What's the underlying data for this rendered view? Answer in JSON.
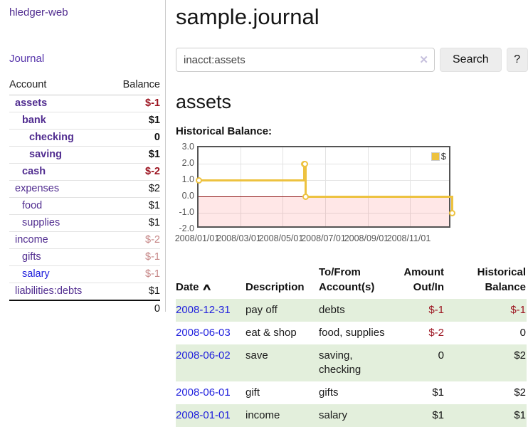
{
  "app": {
    "brand": "hledger-web"
  },
  "sidebar": {
    "nav_journal": "Journal",
    "table": {
      "account_header": "Account",
      "balance_header": "Balance",
      "rows": [
        {
          "account": "assets",
          "balance": "$-1",
          "indent": 1,
          "bold": true,
          "tone": "neg"
        },
        {
          "account": "bank",
          "balance": "$1",
          "indent": 2,
          "bold": true,
          "tone": ""
        },
        {
          "account": "checking",
          "balance": "0",
          "indent": 3,
          "bold": true,
          "tone": ""
        },
        {
          "account": "saving",
          "balance": "$1",
          "indent": 3,
          "bold": true,
          "tone": ""
        },
        {
          "account": "cash",
          "balance": "$-2",
          "indent": 2,
          "bold": true,
          "tone": "neg"
        },
        {
          "account": "expenses",
          "balance": "$2",
          "indent": 1,
          "bold": false,
          "tone": ""
        },
        {
          "account": "food",
          "balance": "$1",
          "indent": 2,
          "bold": false,
          "tone": ""
        },
        {
          "account": "supplies",
          "balance": "$1",
          "indent": 2,
          "bold": false,
          "tone": ""
        },
        {
          "account": "income",
          "balance": "$-2",
          "indent": 1,
          "bold": false,
          "tone": "pale"
        },
        {
          "account": "gifts",
          "balance": "$-1",
          "indent": 2,
          "bold": false,
          "tone": "pale"
        },
        {
          "account": "salary",
          "balance": "$-1",
          "indent": 2,
          "bold": false,
          "tone": "pale",
          "link": "blue"
        },
        {
          "account": "liabilities:debts",
          "balance": "$1",
          "indent": 1,
          "bold": false,
          "tone": ""
        }
      ],
      "total": "0"
    }
  },
  "main": {
    "title": "sample.journal",
    "search": {
      "value": "inacct:assets",
      "clear_icon": "✕",
      "button_label": "Search",
      "help_label": "?"
    },
    "account_heading": "assets",
    "chart_heading": "Historical Balance:",
    "register": {
      "sort_icon": "∧",
      "columns": [
        {
          "line1": "Date",
          "line2": "",
          "align": "left",
          "sortable": true
        },
        {
          "line1": "Description",
          "line2": "",
          "align": "left"
        },
        {
          "line1": "To/From",
          "line2": "Account(s)",
          "align": "left"
        },
        {
          "line1": "Amount",
          "line2": "Out/In",
          "align": "right"
        },
        {
          "line1": "Historical",
          "line2": "Balance",
          "align": "right"
        }
      ],
      "rows": [
        {
          "date": "2008-12-31",
          "description": "pay off",
          "accounts": "debts",
          "amount": "$-1",
          "amount_neg": true,
          "balance": "$-1",
          "balance_neg": true
        },
        {
          "date": "2008-06-03",
          "description": "eat & shop",
          "accounts": "food, supplies",
          "amount": "$-2",
          "amount_neg": true,
          "balance": "0",
          "balance_neg": false
        },
        {
          "date": "2008-06-02",
          "description": "save",
          "accounts": "saving, checking",
          "amount": "0",
          "amount_neg": false,
          "balance": "$2",
          "balance_neg": false
        },
        {
          "date": "2008-06-01",
          "description": "gift",
          "accounts": "gifts",
          "amount": "$1",
          "amount_neg": false,
          "balance": "$2",
          "balance_neg": false
        },
        {
          "date": "2008-01-01",
          "description": "income",
          "accounts": "salary",
          "amount": "$1",
          "amount_neg": false,
          "balance": "$1",
          "balance_neg": false
        }
      ]
    }
  },
  "chart_data": {
    "type": "line",
    "title": "Historical Balance:",
    "steps": true,
    "series": [
      {
        "name": "$",
        "points": [
          [
            "2008-01-01",
            1
          ],
          [
            "2008-06-01",
            2
          ],
          [
            "2008-06-02",
            2
          ],
          [
            "2008-06-03",
            0
          ],
          [
            "2008-12-31",
            -1
          ]
        ]
      }
    ],
    "ylim": [
      -2.0,
      3.0
    ],
    "yticks": [
      "3.0",
      "2.0",
      "1.0",
      "0.0",
      "-1.0",
      "-2.0"
    ],
    "xticks": [
      "2008/01/01",
      "2008/03/01",
      "2008/05/01",
      "2008/07/01",
      "2008/09/01",
      "2008/11/01"
    ],
    "legend": {
      "label": "$",
      "position": "top-right"
    },
    "grid": true,
    "negative_region_shaded": true
  },
  "colors": {
    "series_gold": "#edc240",
    "negative": "#9c1420",
    "pale_negative": "#c68787",
    "row_green": "#e3efdc",
    "link_purple": "#512d90",
    "link_blue": "#2222dd",
    "zero_line": "#8c0f0f"
  }
}
